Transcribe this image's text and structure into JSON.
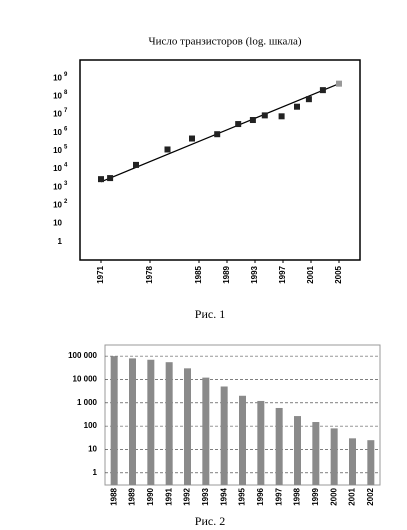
{
  "chart_data": [
    {
      "type": "scatter",
      "title": "Число транзисторов (log. шкала)",
      "caption": "Рис. 1",
      "x": [
        1971,
        1972.3,
        1976,
        1980.5,
        1984,
        1987.6,
        1990.6,
        1992.7,
        1994.4,
        1996.8,
        1999,
        2000.7,
        2002.7,
        2005
      ],
      "values": [
        2800,
        3200,
        17000,
        120000,
        480000,
        830000,
        3000000,
        5000000,
        9000000,
        8000000,
        27000000,
        70000000,
        220000000,
        500000000
      ],
      "colors": [
        "#222",
        "#222",
        "#222",
        "#222",
        "#222",
        "#222",
        "#222",
        "#222",
        "#222",
        "#222",
        "#222",
        "#222",
        "#222",
        "#999"
      ],
      "trend": {
        "x": [
          1971,
          2005
        ],
        "values": [
          2000,
          500000000
        ],
        "color": "#000"
      },
      "log_y": true,
      "xlim": [
        1968,
        2008
      ],
      "ylim": [
        0.1,
        10000000000
      ],
      "xticks": [
        1971,
        1978,
        1985,
        1989,
        1993,
        1997,
        2001,
        2005
      ],
      "yticks": [
        1,
        10,
        {
          "value": 100,
          "label": "10",
          "sup": "2"
        },
        {
          "value": 1000,
          "label": "10",
          "sup": "3"
        },
        {
          "value": 10000,
          "label": "10",
          "sup": "4"
        },
        {
          "value": 100000,
          "label": "10",
          "sup": "5"
        },
        {
          "value": 1000000,
          "label": "10",
          "sup": "6"
        },
        {
          "value": 10000000,
          "label": "10",
          "sup": "7"
        },
        {
          "value": 100000000,
          "label": "10",
          "sup": "8"
        },
        {
          "value": 1000000000,
          "label": "10",
          "sup": "9"
        }
      ],
      "grid": false
    },
    {
      "type": "bar",
      "caption": "Рис. 2",
      "categories": [
        "1988",
        "1989",
        "1990",
        "1991",
        "1992",
        "1993",
        "1994",
        "1995",
        "1996",
        "1997",
        "1998",
        "1999",
        "2000",
        "2001",
        "2002"
      ],
      "values": [
        100000,
        80000,
        70000,
        55000,
        30000,
        12000,
        5000,
        2000,
        1200,
        600,
        270,
        150,
        80,
        30,
        25
      ],
      "color": "#8a8a8a",
      "log_y": true,
      "ylim": [
        0.3,
        300000
      ],
      "yticks": [
        1,
        10,
        100,
        {
          "value": 1000,
          "label": "1 000"
        },
        {
          "value": 10000,
          "label": "10 000"
        },
        {
          "value": 100000,
          "label": "100 000"
        }
      ],
      "grid": true
    }
  ]
}
